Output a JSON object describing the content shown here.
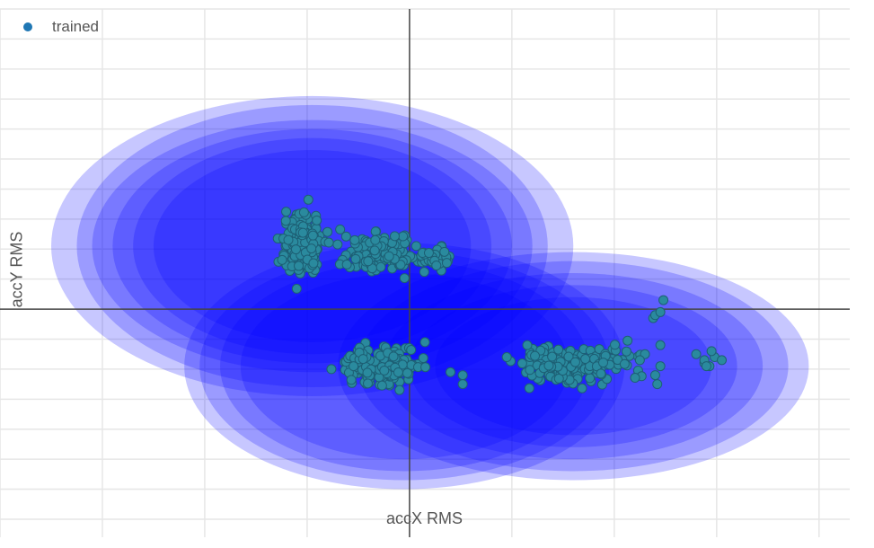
{
  "chart_data": {
    "type": "scatter",
    "xlabel": "accX RMS",
    "ylabel": "accY RMS",
    "xlim": [
      -4,
      4.3
    ],
    "ylim": [
      -3.8,
      5
    ],
    "grid": true,
    "legend_position": "top-left",
    "series": [
      {
        "name": "trained",
        "color": "#1f77b4",
        "marker_color": "#2a8a9e",
        "clusters": [
          {
            "center": [
              -1.05,
              1.05
            ],
            "spread": [
              0.16,
              0.45
            ],
            "n": 190
          },
          {
            "center": [
              -0.3,
              0.9
            ],
            "spread": [
              0.3,
              0.28
            ],
            "n": 150
          },
          {
            "center": [
              0.25,
              0.85
            ],
            "spread": [
              0.18,
              0.2
            ],
            "n": 35
          },
          {
            "center": [
              -0.28,
              -0.95
            ],
            "spread": [
              0.32,
              0.3
            ],
            "n": 170
          },
          {
            "center": [
              1.5,
              -0.95
            ],
            "spread": [
              0.36,
              0.25
            ],
            "n": 170
          },
          {
            "center": [
              2.05,
              -0.9
            ],
            "spread": [
              0.2,
              0.25
            ],
            "n": 25
          }
        ],
        "x": [
          0.4,
          0.52,
          0.52,
          0.95,
          1.15,
          2.38,
          2.4,
          2.45,
          2.48,
          2.45,
          2.3,
          2.25,
          2.45,
          2.4,
          2.42,
          2.8,
          2.88,
          2.93,
          2.98,
          3.05,
          2.88,
          2.95,
          2.9
        ],
        "y": [
          -1.05,
          -1.1,
          -1.25,
          -0.8,
          -0.6,
          -0.15,
          -0.1,
          -0.05,
          0.15,
          -0.6,
          -0.75,
          -0.85,
          -0.95,
          -1.1,
          -1.25,
          -0.75,
          -0.9,
          -0.95,
          -0.8,
          -0.85,
          -0.85,
          -0.7,
          -0.95
        ]
      }
    ],
    "confidence_regions": [
      {
        "center": [
          -0.95,
          1.05
        ],
        "radii": [
          [
            2.55,
            2.5
          ],
          [
            2.3,
            2.35
          ],
          [
            2.15,
            2.1
          ],
          [
            1.95,
            1.95
          ],
          [
            1.75,
            1.8
          ],
          [
            1.55,
            1.6
          ]
        ],
        "color": "#0000ff"
      },
      {
        "center": [
          -0.05,
          -0.95
        ],
        "radii": [
          [
            2.15,
            2.05
          ],
          [
            2.0,
            1.9
          ],
          [
            1.8,
            1.75
          ],
          [
            1.6,
            1.55
          ]
        ],
        "color": "#0000ff"
      },
      {
        "center": [
          1.6,
          -0.95
        ],
        "radii": [
          [
            2.3,
            1.9
          ],
          [
            2.1,
            1.75
          ],
          [
            1.85,
            1.55
          ],
          [
            1.6,
            1.35
          ],
          [
            1.35,
            1.15
          ]
        ],
        "color": "#0000ff"
      }
    ]
  },
  "legend": {
    "label": "trained",
    "marker_color": "#1f77b4"
  }
}
